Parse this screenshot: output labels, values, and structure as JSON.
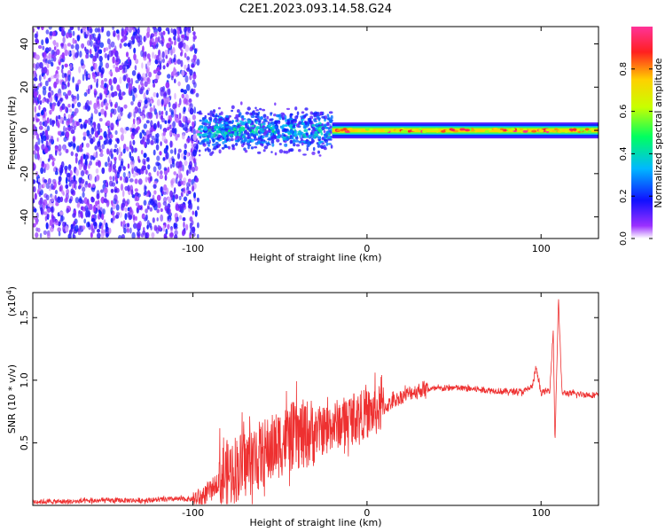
{
  "title": "C2E1.2023.093.14.58.G24",
  "chart_data": [
    {
      "type": "heatmap",
      "xlabel": "Height of straight line (km)",
      "ylabel": "Frequency (Hz)",
      "xlim": [
        -192,
        133
      ],
      "ylim": [
        -50,
        48
      ],
      "x_ticks": [
        -100,
        0,
        100
      ],
      "x_tick_labels": [
        "-100",
        "0",
        "100"
      ],
      "y_ticks": [
        -40,
        -20,
        0,
        20,
        40
      ],
      "y_tick_labels": [
        "-40",
        "-20",
        "0",
        "20",
        "40"
      ],
      "grid": false,
      "colorbar": {
        "label": "Normalized spectral amplitude",
        "range": [
          0,
          1
        ],
        "ticks": [
          0.0,
          0.2,
          0.4,
          0.6,
          0.8
        ],
        "tick_labels": [
          "0.0",
          "0.2",
          "0.4",
          "0.6",
          "0.8"
        ],
        "colors": [
          "#ffffff",
          "#9b30ff",
          "#1010ff",
          "#00b8ff",
          "#00ff60",
          "#c8ff00",
          "#ffd000",
          "#ff2020",
          "#ff3399"
        ]
      },
      "regions": [
        {
          "x": [
            -192,
            -97
          ],
          "freq_range": [
            -50,
            48
          ],
          "amplitude": [
            0.02,
            0.2
          ]
        },
        {
          "x": [
            -97,
            -20
          ],
          "freq_range": [
            -12,
            12
          ],
          "amplitude": [
            0.1,
            0.5
          ]
        },
        {
          "x": [
            -20,
            133
          ],
          "freq_range": [
            -4,
            4
          ],
          "amplitude": [
            0.3,
            1.0
          ]
        }
      ],
      "signal_center_hz": 0
    },
    {
      "type": "line",
      "xlabel": "Height of straight line (km)",
      "ylabel": "SNR (10 * v/v)",
      "y_multiplier_label": "(x10",
      "y_multiplier_exp": "4",
      "y_multiplier_close": ")",
      "xlim": [
        -192,
        133
      ],
      "ylim": [
        0,
        1.7
      ],
      "x_ticks": [
        -100,
        0,
        100
      ],
      "x_tick_labels": [
        "-100",
        "0",
        "100"
      ],
      "y_ticks": [
        0.5,
        1.0,
        1.5
      ],
      "y_tick_labels": [
        "0.5",
        "1.0",
        "1.5"
      ],
      "grid": false,
      "color": "#ee3030",
      "series": [
        {
          "x": [
            -192,
            -170,
            -150,
            -130,
            -110,
            -100,
            -95,
            -90,
            -85,
            -80,
            -75,
            -70,
            -65,
            -60,
            -55,
            -50,
            -45,
            -40,
            -35,
            -30,
            -25,
            -20,
            -15,
            -10,
            -5,
            0,
            5,
            10,
            15,
            20,
            25,
            30,
            35,
            40,
            50,
            60,
            70,
            80,
            90,
            95,
            97,
            100,
            105,
            107,
            108,
            110,
            112,
            120,
            133
          ],
          "y": [
            0.03,
            0.03,
            0.04,
            0.04,
            0.05,
            0.05,
            0.06,
            0.12,
            0.2,
            0.25,
            0.3,
            0.33,
            0.37,
            0.41,
            0.45,
            0.5,
            0.54,
            0.56,
            0.57,
            0.59,
            0.6,
            0.64,
            0.66,
            0.7,
            0.72,
            0.73,
            0.75,
            0.78,
            0.83,
            0.87,
            0.9,
            0.92,
            0.93,
            0.93,
            0.94,
            0.93,
            0.92,
            0.91,
            0.91,
            0.95,
            1.1,
            0.9,
            0.92,
            1.4,
            0.5,
            1.65,
            0.9,
            0.89,
            0.88
          ]
        }
      ],
      "noise_amplitude": [
        {
          "x": [
            -192,
            -100
          ],
          "amp": 0.02
        },
        {
          "x": [
            -100,
            -85
          ],
          "amp": 0.08
        },
        {
          "x": [
            -85,
            -30
          ],
          "amp": 0.28
        },
        {
          "x": [
            -30,
            10
          ],
          "amp": 0.2
        },
        {
          "x": [
            10,
            35
          ],
          "amp": 0.06
        },
        {
          "x": [
            35,
            133
          ],
          "amp": 0.025
        }
      ]
    }
  ]
}
